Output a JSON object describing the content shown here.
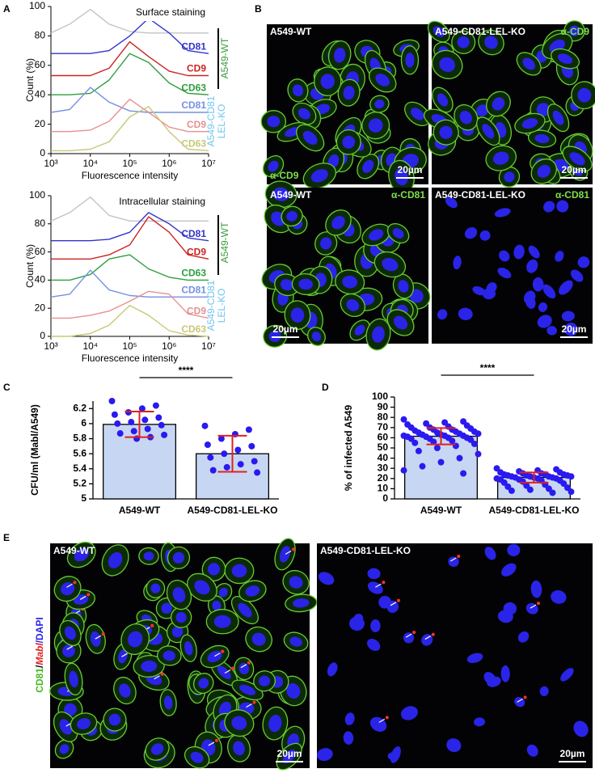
{
  "panel_labels": [
    "A",
    "B",
    "C",
    "D",
    "E"
  ],
  "chart_data": [
    {
      "type": "line",
      "annotation": "Surface staining",
      "xlabel": "Fluorescence intensity",
      "ylabel": "Count (%)",
      "xscale": "log",
      "xlim": [
        1000,
        10000000
      ],
      "xticks": [
        {
          "value": 1000,
          "label": "10³"
        },
        {
          "value": 10000,
          "label": "10⁴"
        },
        {
          "value": 100000,
          "label": "10⁵"
        },
        {
          "value": 1000000,
          "label": "10⁶"
        },
        {
          "value": 10000000,
          "label": "10⁷"
        }
      ],
      "ylim": [
        0,
        100
      ],
      "yticks": [
        0,
        20,
        40,
        60,
        80,
        100
      ],
      "x": [
        1000,
        3000,
        10000,
        30000,
        100000,
        300000,
        1000000,
        3000000,
        10000000
      ],
      "series": [
        {
          "color": "#c4c4c4",
          "values": [
            82,
            88,
            98,
            88,
            83,
            82,
            82,
            82,
            82
          ]
        },
        {
          "name": "CD81",
          "color": "#3333cc",
          "values": [
            68,
            68,
            68,
            70,
            80,
            92,
            82,
            70,
            68
          ]
        },
        {
          "name": "CD9",
          "color": "#cc2222",
          "values": [
            53,
            53,
            53,
            58,
            76,
            66,
            56,
            53,
            53
          ]
        },
        {
          "name": "CD63",
          "color": "#2e9e3e",
          "values": [
            40,
            40,
            41,
            50,
            68,
            62,
            48,
            41,
            40
          ]
        },
        {
          "name": "CD81",
          "color": "#7590e0",
          "values": [
            28,
            30,
            45,
            35,
            29,
            28,
            28,
            28,
            28
          ]
        },
        {
          "name": "CD9",
          "color": "#e89090",
          "values": [
            15,
            15,
            16,
            22,
            37,
            28,
            18,
            15,
            15
          ]
        },
        {
          "name": "CD63",
          "color": "#c8c878",
          "values": [
            2,
            2,
            3,
            8,
            25,
            32,
            15,
            3,
            2
          ]
        }
      ],
      "group_labels": [
        {
          "lines": [
            "A549-WT"
          ],
          "color": "#3a9a3a"
        },
        {
          "lines": [
            "A549-CD81",
            "LEL-KO"
          ],
          "color": "#6cc6ee"
        }
      ]
    },
    {
      "type": "line",
      "annotation": "Intracellular staining",
      "xlabel": "Fluorescence intensity",
      "ylabel": "Count (%)",
      "xscale": "log",
      "xlim": [
        1000,
        10000000
      ],
      "xticks": [
        {
          "value": 1000,
          "label": "10³"
        },
        {
          "value": 10000,
          "label": "10⁴"
        },
        {
          "value": 100000,
          "label": "10⁵"
        },
        {
          "value": 1000000,
          "label": "10⁶"
        },
        {
          "value": 10000000,
          "label": "10⁷"
        }
      ],
      "ylim": [
        0,
        100
      ],
      "yticks": [
        0,
        20,
        40,
        60,
        80,
        100
      ],
      "x": [
        1000,
        3000,
        10000,
        30000,
        100000,
        300000,
        1000000,
        3000000,
        10000000
      ],
      "series": [
        {
          "color": "#c4c4c4",
          "values": [
            82,
            88,
            99,
            86,
            82,
            82,
            82,
            82,
            82
          ]
        },
        {
          "name": "CD81",
          "color": "#3333cc",
          "values": [
            68,
            68,
            68,
            69,
            74,
            88,
            80,
            70,
            68
          ]
        },
        {
          "name": "CD9",
          "color": "#cc2222",
          "values": [
            55,
            55,
            55,
            58,
            65,
            85,
            74,
            58,
            55
          ]
        },
        {
          "name": "CD63",
          "color": "#2e9e3e",
          "values": [
            40,
            40,
            44,
            55,
            58,
            48,
            42,
            40,
            40
          ]
        },
        {
          "name": "CD81",
          "color": "#7590e0",
          "values": [
            28,
            30,
            47,
            33,
            29,
            28,
            28,
            28,
            28
          ]
        },
        {
          "name": "CD9",
          "color": "#e89090",
          "values": [
            13,
            13,
            15,
            18,
            25,
            32,
            30,
            16,
            13
          ]
        },
        {
          "name": "CD63",
          "color": "#c8c878",
          "values": [
            0,
            0,
            2,
            8,
            22,
            15,
            4,
            1,
            0
          ]
        }
      ],
      "group_labels": [
        {
          "lines": [
            "A549-WT"
          ],
          "color": "#3a9a3a"
        },
        {
          "lines": [
            "A549-CD81",
            "LEL-KO"
          ],
          "color": "#6cc6ee"
        }
      ]
    },
    {
      "type": "bar",
      "ylabel": "CFU/ml (Mabl/A549)",
      "categories": [
        "A549-WT",
        "A549-CD81-LEL-KO"
      ],
      "values": [
        5.99,
        5.6
      ],
      "errors": [
        0.17,
        0.24
      ],
      "points": [
        [
          6.3,
          6.24,
          6.2,
          6.15,
          6.12,
          6.08,
          6.05,
          6.02,
          6.0,
          5.98,
          5.93,
          5.9,
          5.87,
          5.85,
          5.82,
          5.8
        ],
        [
          5.97,
          5.92,
          5.86,
          5.8,
          5.72,
          5.7,
          5.65,
          5.6,
          5.55,
          5.5,
          5.46,
          5.42,
          5.38,
          5.35
        ]
      ],
      "color": "#c7d7f3",
      "point_color": "#2a1af0",
      "error_color": "#e02020",
      "ylim": [
        5,
        6.3
      ],
      "yticks": [
        5,
        5.2,
        5.4,
        5.6,
        5.8,
        6,
        6.2
      ],
      "significance": "****"
    },
    {
      "type": "bar",
      "ylabel": "% of infected A549",
      "categories": [
        "A549-WT",
        "A549-CD81-LEL-KO"
      ],
      "values": [
        61.5,
        21
      ],
      "errors": [
        8,
        5
      ],
      "points": [
        [
          78,
          76,
          75,
          74,
          73,
          72,
          71,
          70,
          70,
          69,
          68,
          68,
          67,
          66,
          66,
          65,
          65,
          64,
          64,
          63,
          63,
          62,
          62,
          62,
          61,
          61,
          60,
          60,
          59,
          59,
          58,
          57,
          56,
          55,
          54,
          52,
          50,
          47,
          44,
          40,
          36,
          32,
          28,
          25
        ],
        [
          30,
          29,
          28,
          27,
          26,
          26,
          25,
          25,
          24,
          24,
          24,
          23,
          23,
          23,
          22,
          22,
          22,
          22,
          21,
          21,
          21,
          20,
          20,
          20,
          19,
          19,
          18,
          18,
          17,
          16,
          15,
          14,
          13,
          12,
          11,
          10,
          9,
          8,
          7,
          6
        ]
      ],
      "color": "#c7d7f3",
      "point_color": "#2a1af0",
      "error_color": "#e02020",
      "ylim": [
        0,
        100
      ],
      "yticks": [
        0,
        10,
        20,
        30,
        40,
        50,
        60,
        70,
        80,
        90,
        100
      ],
      "significance": "****"
    }
  ],
  "images": {
    "B": [
      {
        "label": "A549-WT",
        "stain": "α-CD9",
        "scale": "20µm"
      },
      {
        "label": "A549-CD81-LEL-KO",
        "stain": "α-CD9",
        "scale": "20µm"
      },
      {
        "label": "A549-WT",
        "stain": "α-CD81",
        "scale": "20µm"
      },
      {
        "label": "A549-CD81-LEL-KO",
        "stain": "α-CD81",
        "scale": "20µm"
      }
    ],
    "E": [
      {
        "label": "A549-WT",
        "scale": "20µm"
      },
      {
        "label": "A549-CD81-LEL-KO",
        "scale": "20µm"
      }
    ],
    "E_channels": [
      "CD81",
      "/",
      "Mabl",
      "/",
      "DAPI"
    ]
  }
}
